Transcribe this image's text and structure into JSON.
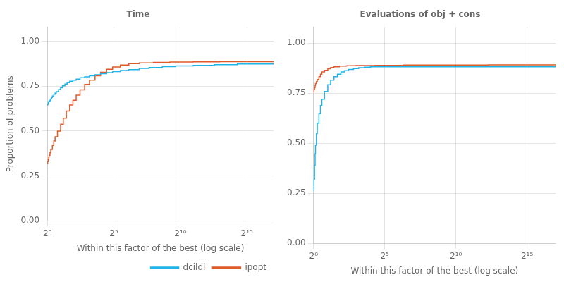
{
  "chart_data": [
    {
      "type": "line",
      "title": "Time",
      "xlabel": "Within this factor of the best (log scale)",
      "ylabel": "Proportion of problems",
      "log": "x",
      "grid": true,
      "legend": "lower right",
      "line_style": "step",
      "xlim": [
        1,
        131072
      ],
      "ylim": [
        0.0,
        1.08
      ],
      "xticks": [
        {
          "value": 1,
          "label": "2⁰"
        },
        {
          "value": 32,
          "label": "2⁵"
        },
        {
          "value": 1024,
          "label": "2¹⁰"
        },
        {
          "value": 32768,
          "label": "2¹⁵"
        }
      ],
      "yticks": [
        {
          "value": 0.0,
          "label": "0.00"
        },
        0.25,
        {
          "value": 0.5,
          "label": "0.50"
        },
        0.75,
        {
          "value": 1.0,
          "label": "1.00"
        }
      ],
      "series": [
        {
          "name": "dcildl",
          "color": "#1fb4e8",
          "x": [
            1.0,
            1.02,
            1.05,
            1.08,
            1.1,
            1.15,
            1.2,
            1.25,
            1.3,
            1.4,
            1.5,
            1.6,
            1.8,
            2.0,
            2.2,
            2.5,
            2.8,
            3.2,
            3.8,
            4.5,
            5.5,
            7.0,
            9.0,
            12.0,
            16.0,
            22.0,
            30.0,
            45.0,
            70.0,
            120.0,
            200.0,
            400.0,
            800.0,
            2000.0,
            6000.0,
            20000.0,
            131072.0
          ],
          "values": [
            0.645,
            0.65,
            0.66,
            0.665,
            0.668,
            0.672,
            0.68,
            0.688,
            0.695,
            0.705,
            0.712,
            0.72,
            0.732,
            0.742,
            0.752,
            0.762,
            0.77,
            0.778,
            0.784,
            0.79,
            0.798,
            0.803,
            0.808,
            0.814,
            0.82,
            0.826,
            0.832,
            0.838,
            0.843,
            0.85,
            0.855,
            0.86,
            0.863,
            0.866,
            0.87,
            0.874,
            0.878
          ]
        },
        {
          "name": "ipopt",
          "color": "#e05a2b",
          "x": [
            1.0,
            1.02,
            1.05,
            1.08,
            1.1,
            1.15,
            1.2,
            1.3,
            1.4,
            1.5,
            1.7,
            2.0,
            2.3,
            2.7,
            3.2,
            3.8,
            4.5,
            5.5,
            7.0,
            9.0,
            12.0,
            16.0,
            22.0,
            30.0,
            45.0,
            70.0,
            120.0,
            250.0,
            600.0,
            2000.0,
            8000.0,
            131072.0
          ],
          "values": [
            0.32,
            0.33,
            0.342,
            0.355,
            0.365,
            0.38,
            0.398,
            0.42,
            0.445,
            0.468,
            0.5,
            0.538,
            0.572,
            0.612,
            0.645,
            0.672,
            0.7,
            0.73,
            0.76,
            0.784,
            0.808,
            0.828,
            0.845,
            0.858,
            0.868,
            0.876,
            0.88,
            0.883,
            0.885,
            0.886,
            0.887,
            0.89
          ]
        }
      ]
    },
    {
      "type": "line",
      "title": "Evaluations of obj + cons",
      "xlabel": "Within this factor of the best (log scale)",
      "log": "x",
      "grid": true,
      "line_style": "step",
      "xlim": [
        1,
        131072
      ],
      "ylim": [
        0.0,
        1.08
      ],
      "xticks": [
        {
          "value": 1,
          "label": "2⁰"
        },
        {
          "value": 32,
          "label": "2⁵"
        },
        {
          "value": 1024,
          "label": "2¹⁰"
        },
        {
          "value": 32768,
          "label": "2¹⁵"
        }
      ],
      "yticks": [
        {
          "value": 0.0,
          "label": "0.00"
        },
        0.25,
        {
          "value": 0.5,
          "label": "0.50"
        },
        0.75,
        {
          "value": 1.0,
          "label": "1.00"
        }
      ],
      "series": [
        {
          "color": "#1fb4e8",
          "x": [
            1.0,
            1.02,
            1.05,
            1.08,
            1.1,
            1.15,
            1.2,
            1.3,
            1.4,
            1.5,
            1.7,
            2.0,
            2.3,
            2.7,
            3.2,
            3.8,
            4.5,
            5.5,
            7.0,
            9.0,
            12.0,
            16.0,
            131072
          ],
          "values": [
            0.265,
            0.32,
            0.39,
            0.448,
            0.49,
            0.548,
            0.6,
            0.648,
            0.688,
            0.72,
            0.758,
            0.792,
            0.815,
            0.832,
            0.845,
            0.856,
            0.862,
            0.868,
            0.873,
            0.877,
            0.88,
            0.882,
            0.882
          ]
        },
        {
          "color": "#e05a2b",
          "x": [
            1.0,
            1.02,
            1.05,
            1.08,
            1.1,
            1.15,
            1.2,
            1.3,
            1.4,
            1.5,
            1.7,
            2.0,
            2.3,
            2.7,
            3.5,
            5.0,
            8.0,
            20.0,
            80.0,
            500.0,
            5000.0,
            131072.0
          ],
          "values": [
            0.755,
            0.768,
            0.778,
            0.788,
            0.798,
            0.808,
            0.818,
            0.832,
            0.845,
            0.856,
            0.864,
            0.872,
            0.878,
            0.882,
            0.885,
            0.887,
            0.888,
            0.889,
            0.89,
            0.89,
            0.891,
            0.892
          ]
        }
      ]
    }
  ]
}
